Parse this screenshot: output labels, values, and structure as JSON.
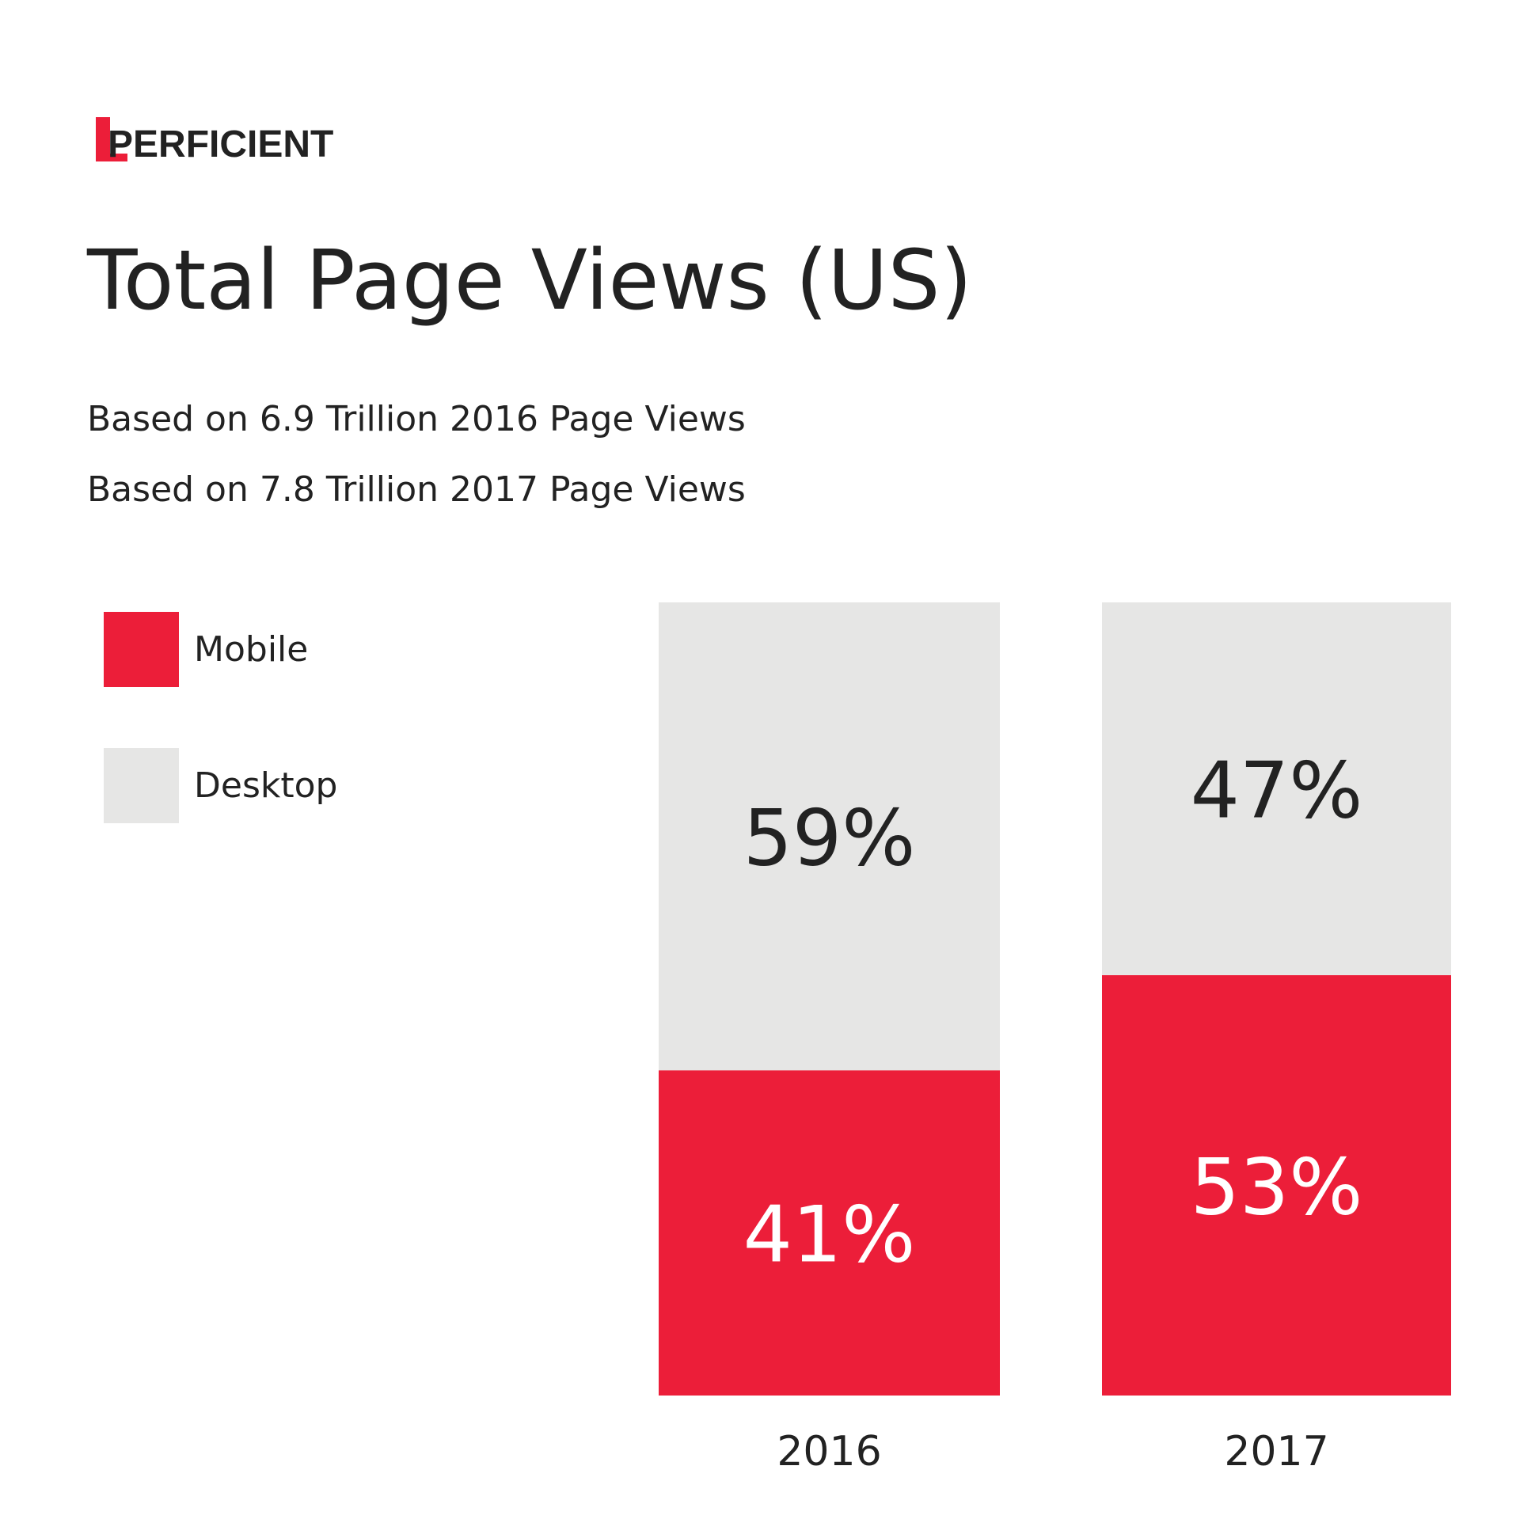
{
  "logo": "PERFICIENT",
  "chart_data": {
    "type": "stacked-bar",
    "title": "Total Page Views (US)",
    "subtitle": [
      "Based on 6.9 Trillion 2016 Page Views",
      "Based on 7.8 Trillion 2017 Page Views"
    ],
    "categories": [
      "2016",
      "2017"
    ],
    "series": [
      {
        "name": "Mobile",
        "color": "#ec1e39",
        "values": [
          41,
          53
        ],
        "value_labels": [
          "41%",
          "53%"
        ],
        "label_color": "#ffffff"
      },
      {
        "name": "Desktop",
        "color": "#e6e6e5",
        "values": [
          59,
          47
        ],
        "value_labels": [
          "59%",
          "47%"
        ],
        "label_color": "#222222"
      }
    ],
    "ylim": [
      0,
      100
    ]
  }
}
